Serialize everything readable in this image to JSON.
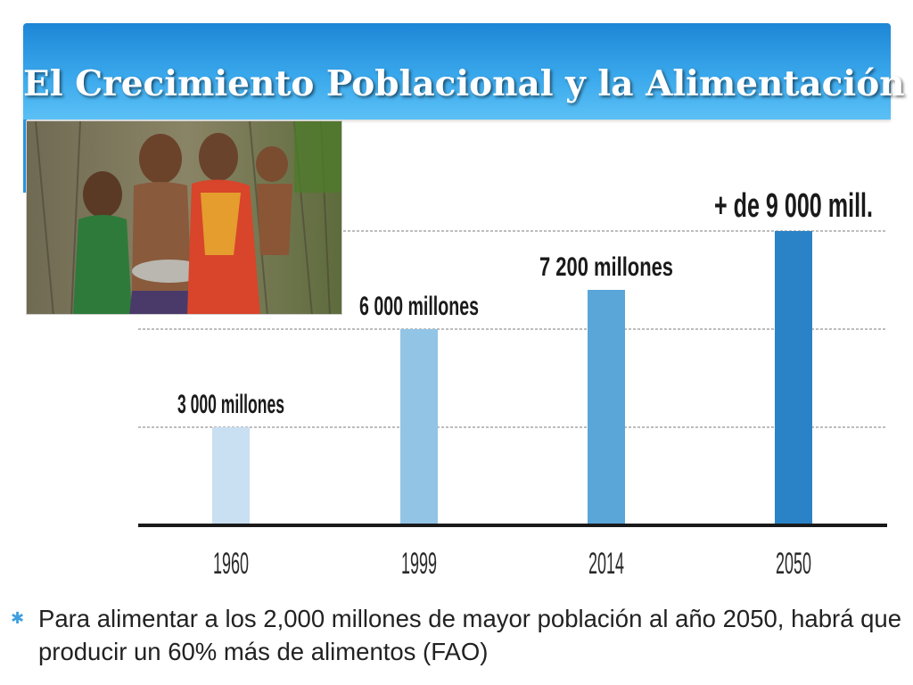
{
  "slide": {
    "title": "El Crecimiento Poblacional y la Alimentación",
    "bullet_icon": "asterisk-bullet",
    "footer": "Para alimentar a los 2,000 millones de mayor población al año 2050, habrá que producir un 60% más de alimentos (FAO)"
  },
  "colors": {
    "title_bar": "#2a9ae6",
    "gridline": "#bdbdbd",
    "axis": "#1a1a1a"
  },
  "chart_data": {
    "type": "bar",
    "title": "",
    "xlabel": "",
    "ylabel": "",
    "categories": [
      "1960",
      "1999",
      "2014",
      "2050"
    ],
    "values": [
      3000,
      6000,
      7200,
      9000
    ],
    "data_labels": [
      "3 000 millones",
      "6 000 millones",
      "7 200 millones",
      "+ de 9 000 mill."
    ],
    "bar_colors": [
      "#c9dff2",
      "#92c4e6",
      "#5aa6d8",
      "#2a83c7"
    ],
    "ylim": [
      0,
      9000
    ],
    "gridlines": [
      3000,
      6000,
      9000
    ],
    "grid": true,
    "legend": "none"
  }
}
